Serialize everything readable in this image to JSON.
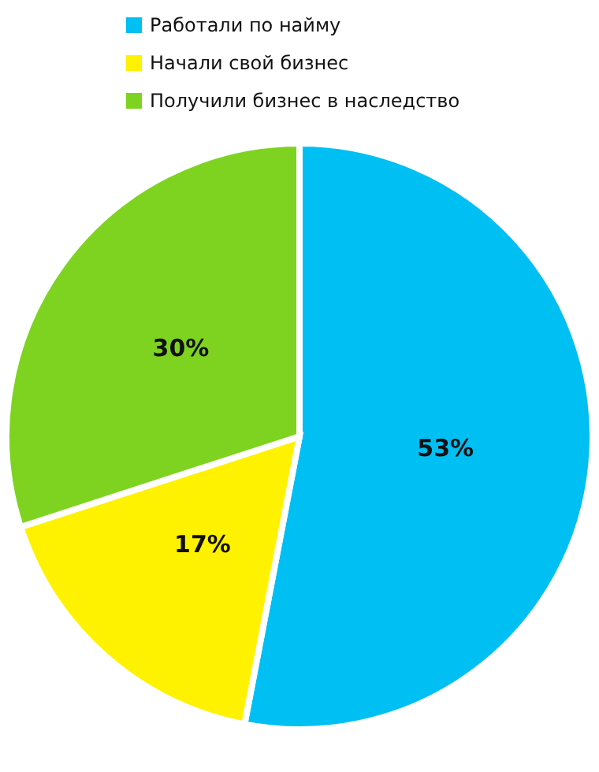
{
  "chart_data": {
    "type": "pie",
    "categories": [
      "Работали по найму",
      "Начали свой бизнес",
      "Получили бизнес в наследство"
    ],
    "values": [
      53,
      17,
      30
    ],
    "colors": [
      "#00bff3",
      "#fff200",
      "#7ed321"
    ],
    "value_labels": [
      "53%",
      "17%",
      "30%"
    ],
    "legend": "top"
  }
}
